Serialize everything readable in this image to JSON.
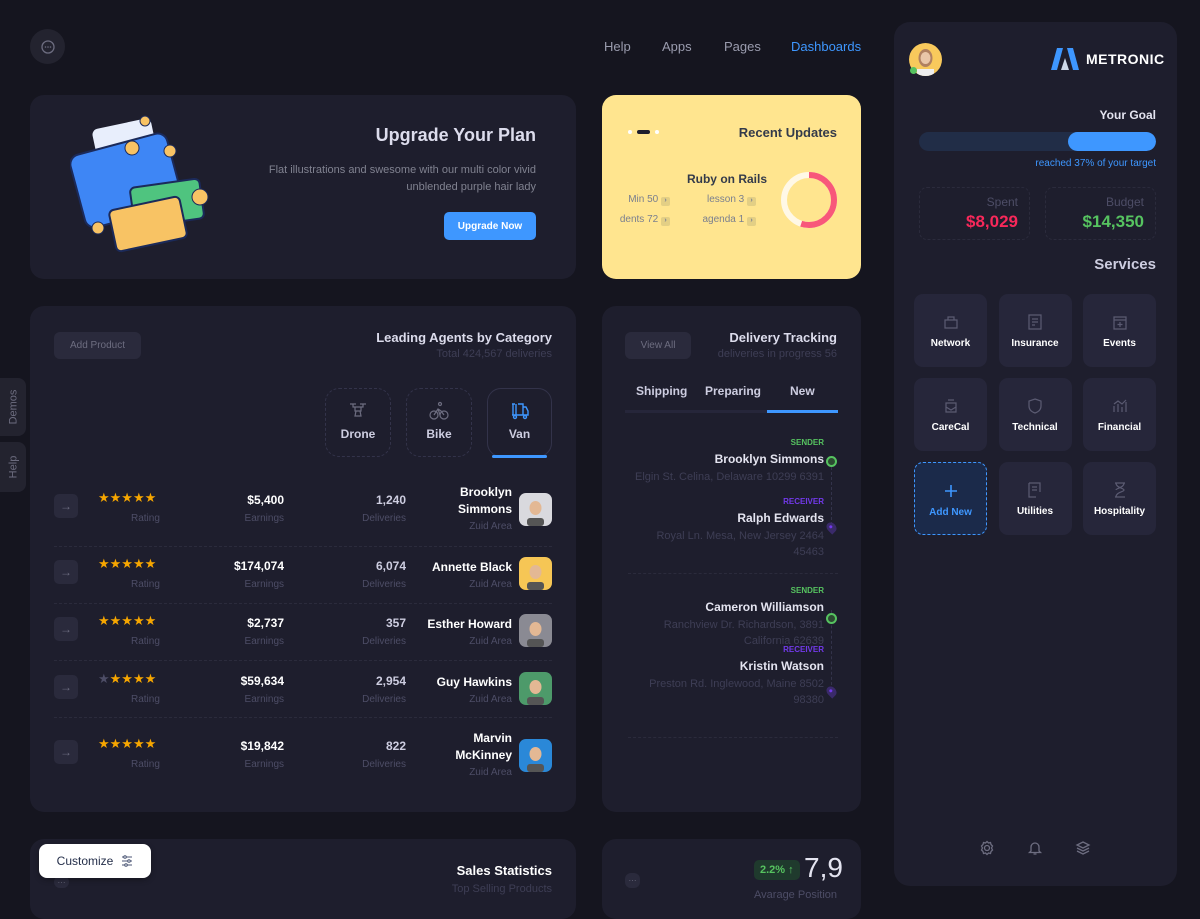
{
  "header": {
    "nav": [
      "Help",
      "Apps",
      "Pages",
      "Dashboards"
    ],
    "active": "Dashboards"
  },
  "side_tabs": [
    "Demos",
    "Help"
  ],
  "upgrade": {
    "title": "Upgrade Your Plan",
    "text": "Flat illustrations and swesome with our multi color vivid unblended purple hair lady",
    "button": "Upgrade Now"
  },
  "recent": {
    "title": "Recent Updates",
    "subtitle": "Ruby on Rails",
    "items": [
      "Min 50",
      "lesson 3",
      "dents 72",
      "agenda 1"
    ],
    "progress_percent": 55,
    "colors": {
      "bg": "#ffe58f",
      "ring": "#f8577a"
    }
  },
  "agents": {
    "title": "Leading Agents by Category",
    "subtitle": "Total 424,567 deliveries",
    "add_button": "Add Product",
    "categories": [
      {
        "label": "Drone",
        "icon": "drone-icon"
      },
      {
        "label": "Bike",
        "icon": "bike-icon"
      },
      {
        "label": "Van",
        "icon": "van-icon"
      }
    ],
    "active_category": "Van",
    "rating_label": "Rating",
    "earnings_label": "Earnings",
    "deliveries_label": "Deliveries",
    "rows": [
      {
        "stars": 5,
        "earnings": "$5,400",
        "deliveries": "1,240",
        "name": "Brooklyn Simmons",
        "area": "Zuid Area"
      },
      {
        "stars": 5,
        "earnings": "$174,074",
        "deliveries": "6,074",
        "name": "Annette Black",
        "area": "Zuid Area"
      },
      {
        "stars": 5,
        "earnings": "$2,737",
        "deliveries": "357",
        "name": "Esther Howard",
        "area": "Zuid Area"
      },
      {
        "stars": 4,
        "earnings": "$59,634",
        "deliveries": "2,954",
        "name": "Guy Hawkins",
        "area": "Zuid Area"
      },
      {
        "stars": 5,
        "earnings": "$19,842",
        "deliveries": "822",
        "name": "Marvin McKinney",
        "area": "Zuid Area"
      }
    ]
  },
  "tracking": {
    "title": "Delivery Tracking",
    "subtitle": "deliveries in progress 56",
    "view_all": "View All",
    "tabs": [
      "Shipping",
      "Preparing",
      "New"
    ],
    "active_tab": "New",
    "groups": [
      {
        "sender": {
          "label": "SENDER",
          "name": "Brooklyn Simmons",
          "address": "Elgin St. Celina, Delaware 10299 6391"
        },
        "receiver": {
          "label": "RECEIVER",
          "name": "Ralph Edwards",
          "address": "Royal Ln. Mesa, New Jersey 2464 45463"
        }
      },
      {
        "sender": {
          "label": "SENDER",
          "name": "Cameron Williamson",
          "address": "Ranchview Dr. Richardson, 3891 California 62639"
        },
        "receiver": {
          "label": "RECEIVER",
          "name": "Kristin Watson",
          "address": "Preston Rd. Inglewood, Maine 8502 98380"
        }
      }
    ]
  },
  "sales": {
    "title": "Sales Statistics",
    "subtitle": "Top Selling Products"
  },
  "position": {
    "badge": "2.2%",
    "value": "7,9",
    "label": "Avarage Position"
  },
  "customize": {
    "label": "Customize"
  },
  "panel": {
    "brand": "METRONIC",
    "goal_label": "Your Goal",
    "goal_percent": 37,
    "goal_text": "reached 37% of your target",
    "spent_label": "Spent",
    "spent": "$8,029",
    "budget_label": "Budget",
    "budget": "$14,350",
    "services_title": "Services",
    "services": [
      {
        "label": "Network"
      },
      {
        "label": "Insurance"
      },
      {
        "label": "Events"
      },
      {
        "label": "CareCal"
      },
      {
        "label": "Technical"
      },
      {
        "label": "Financial"
      },
      {
        "label": "Add New"
      },
      {
        "label": "Utilities"
      },
      {
        "label": "Hospitality"
      }
    ],
    "colors": {
      "accent": "#3e97ff",
      "spent": "#f8285a",
      "budget": "#56c360"
    }
  }
}
